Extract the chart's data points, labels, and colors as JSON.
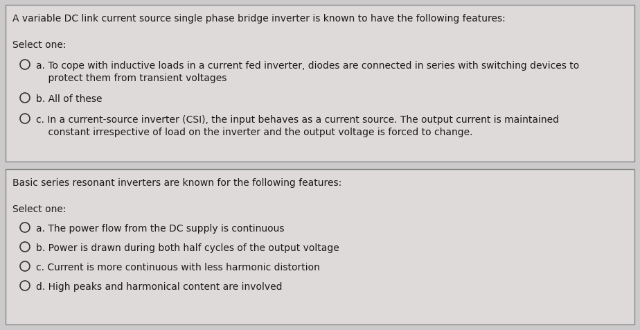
{
  "bg_color": "#cccaca",
  "box1_bg": "#dedad9",
  "box2_bg": "#dedad9",
  "box_edge_color": "#888888",
  "title1": "A variable DC link current source single phase bridge inverter is known to have the following features:",
  "select1": "Select one:",
  "options1_line1": [
    "a. To cope with inductive loads in a current fed inverter, diodes are connected in series with switching devices to"
  ],
  "options1_line2": [
    "    protect them from transient voltages"
  ],
  "option1b": "b. All of these",
  "options1c_line1": "c. In a current-source inverter (CSI), the input behaves as a current source. The output current is maintained",
  "options1c_line2": "    constant irrespective of load on the inverter and the output voltage is forced to change.",
  "title2": "Basic series resonant inverters are known for the following features:",
  "select2": "Select one:",
  "option2a": "a. The power flow from the DC supply is continuous",
  "option2b": "b. Power is drawn during both half cycles of the output voltage",
  "option2c": "c. Current is more continuous with less harmonic distortion",
  "option2d": "d. High peaks and harmonical content are involved",
  "text_color": "#1a1a1a",
  "font_size": 10.0,
  "circle_color": "#333333"
}
